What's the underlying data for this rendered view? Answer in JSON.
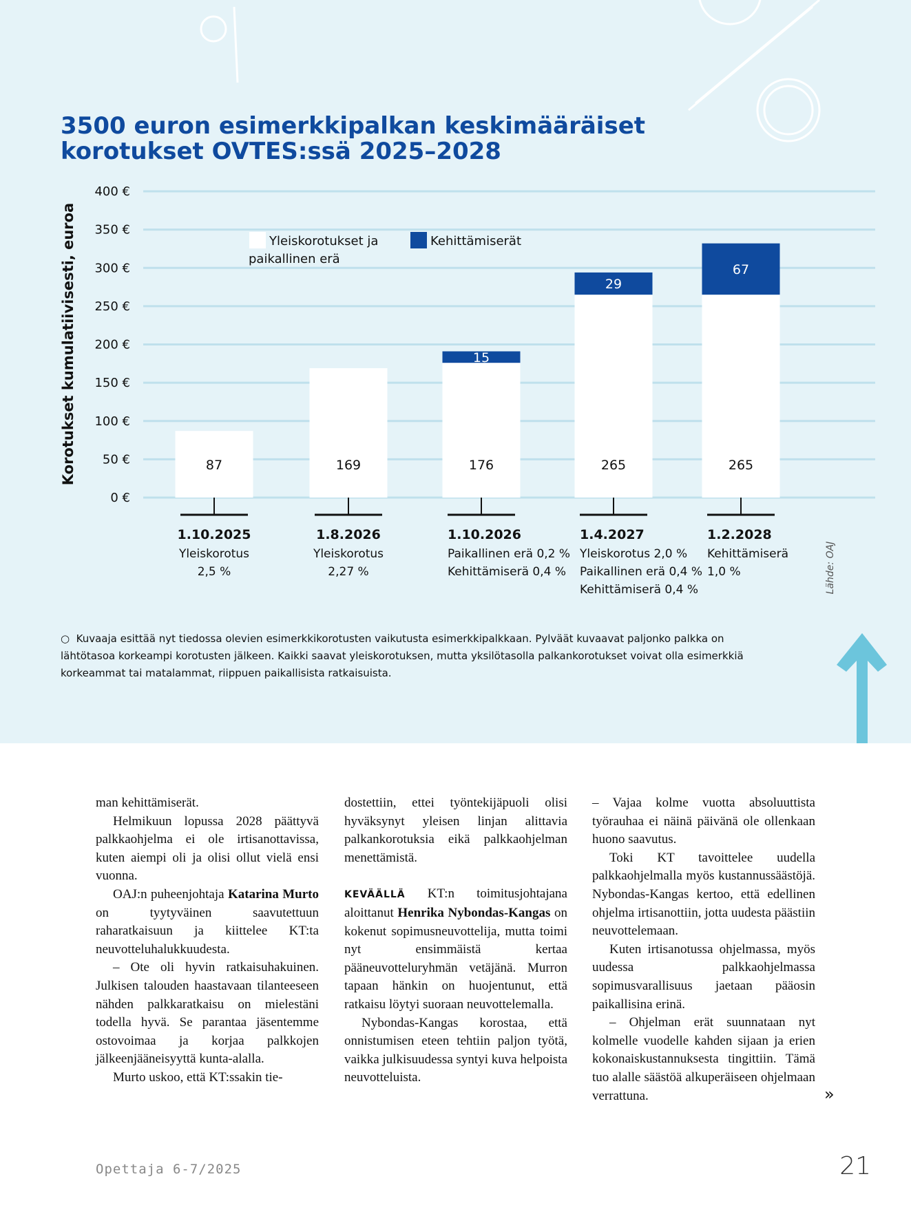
{
  "chart_data": {
    "type": "bar",
    "stacked": true,
    "title": "3500 euron esimerkkipalkan keskimääräiset korotukset OVTES:ssä 2025–2028",
    "y_label": "Korotukset kumulatiivisesti, euroa",
    "categories": [
      "1.10.2025",
      "1.8.2026",
      "1.10.2026",
      "1.4.2027",
      "1.2.2028"
    ],
    "descriptions": [
      [
        "Yleiskorotus",
        "2,5 %"
      ],
      [
        "Yleiskorotus",
        "2,27 %"
      ],
      [
        "Paikallinen erä 0,2 %",
        "Kehittämiserä 0,4 %"
      ],
      [
        "Yleiskorotus 2,0 %",
        "Paikallinen erä 0,4 %",
        "Kehittämiserä 0,4 %"
      ],
      [
        "Kehittämiserä",
        "1,0 %"
      ]
    ],
    "series": [
      {
        "name": "Yleiskorotukset ja paikallinen erä",
        "color": "#ffffff",
        "values": [
          87,
          169,
          176,
          265,
          265
        ]
      },
      {
        "name": "Kehittämiserät",
        "color": "#0f4a9e",
        "values": [
          null,
          null,
          15,
          29,
          67
        ]
      }
    ],
    "ylim": [
      0,
      400
    ],
    "yticks": [
      {
        "value": 0,
        "label": "0 €"
      },
      {
        "value": 50,
        "label": "50 €"
      },
      {
        "value": 100,
        "label": "100 €"
      },
      {
        "value": 150,
        "label": "150 €"
      },
      {
        "value": 200,
        "label": "200 €"
      },
      {
        "value": 250,
        "label": "250 €"
      },
      {
        "value": 300,
        "label": "300 €"
      },
      {
        "value": 350,
        "label": "350 €"
      },
      {
        "value": 400,
        "label": "400 €"
      }
    ],
    "grid": true,
    "source": "Lähde: OAJ"
  },
  "note": "Kuvaaja esittää nyt tiedossa olevien esimerkkikorotusten vaikutusta esimerkkipalkkaan. Pylväät kuvaavat paljonko palkka on lähtötasoa korkeampi korotusten jälkeen. Kaikki saavat yleiskorotuksen, mutta yksilötasolla palkankorotukset voivat olla esimerkkiä korkeammat tai matalammat, riippuen paikallisista ratkaisuista.",
  "article": {
    "columns": [
      [
        [
          "man kehittämiserät."
        ],
        [
          "Helmikuun lopussa 2028 päättyvä palkkaohjelma ei ole irtisanottavissa, kuten aiempi oli ja olisi ollut vielä ensi vuonna."
        ],
        [
          "OAJ:n puheenjohtaja ",
          {
            "text": "Katarina Murto",
            "bold": true
          },
          " on tyytyväinen saavutettuun raharatkaisuun ja kiittelee KT:ta neuvotteluhalukkuudesta."
        ],
        [
          "– Ote oli hyvin ratkaisuhakuinen. Julkisen talouden haastavaan tilanteeseen nähden palkkaratkaisu on mielestäni todella hyvä. Se parantaa jäsentemme ostovoimaa ja korjaa palkkojen jälkeenjääneisyyttä kunta-alalla."
        ],
        [
          "Murto uskoo, että KT:ssakin tie-"
        ]
      ],
      [
        [
          "dostettiin, ettei työntekijäpuoli olisi hyväksynyt yleisen linjan alittavia palkankorotuksia eikä palkkaohjelman menettämistä."
        ],
        [
          {
            "text": "KEVÄÄLLÄ",
            "caps": true
          },
          " KT:n toimitusjohtajana aloittanut ",
          {
            "text": "Henrika Nybondas-Kangas",
            "bold": true
          },
          " on kokenut sopimusneuvottelija, mutta toimi nyt ensimmäistä kertaa pääneuvotteluryhmän vetäjänä. Murron tapaan hänkin on huojentunut, että ratkaisu löytyi suoraan neuvottelemalla."
        ],
        [
          "Nybondas-Kangas korostaa, että onnistumisen eteen tehtiin paljon työtä, vaikka julkisuudessa syntyi kuva helpoista neuvotteluista."
        ]
      ],
      [
        [
          "– Vajaa kolme vuotta absoluuttista työrauhaa ei näinä päivänä ole ollenkaan huono saavutus."
        ],
        [
          "Toki KT tavoittelee uudella palkkaohjelmalla myös kustannussäästöjä. Nybondas-Kangas kertoo, että edellinen ohjelma irtisanottiin, jotta uudesta päästiin neuvottelemaan."
        ],
        [
          "Kuten irtisanotussa ohjelmassa, myös uudessa palkkaohjelmassa sopimusvarallisuus jaetaan pääosin paikallisina erinä."
        ],
        [
          "– Ohjelman erät suunnataan nyt kolmelle vuodelle kahden sijaan ja erien kokonaiskustannuksesta tingittiin. Tämä tuo alalle säästöä alkuperäiseen ohjelmaan verrattuna."
        ]
      ]
    ],
    "continues": "»"
  },
  "footer": {
    "publication": "Opettaja 6-7/2025",
    "page": "21"
  }
}
